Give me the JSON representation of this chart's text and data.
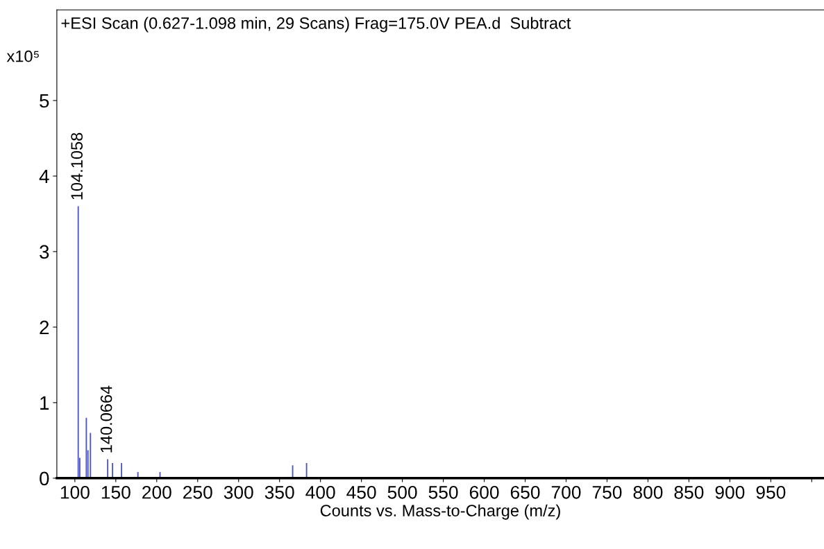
{
  "chart_data": {
    "type": "bar",
    "title": "+ESI Scan (0.627-1.098 min, 29 Scans) Frag=175.0V PEA.d  Subtract",
    "xlabel": "Counts vs. Mass-to-Charge (m/z)",
    "ylabel": "x10⁵",
    "x": [
      104.1058,
      106,
      114,
      116,
      119,
      140.0664,
      146,
      157,
      177,
      204,
      366,
      383
    ],
    "values": [
      3.6,
      0.27,
      0.8,
      0.37,
      0.6,
      0.25,
      0.2,
      0.2,
      0.08,
      0.08,
      0.17,
      0.2
    ],
    "color": "#5058c0",
    "annotations": [
      {
        "text": "104.1058",
        "x": 104.1058,
        "y": 3.6
      },
      {
        "text": "140.0664",
        "x": 140.0664,
        "y": 0.25
      }
    ],
    "xlim": [
      78,
      1015
    ],
    "ylim": [
      0,
      6.2
    ],
    "xticks": [
      100,
      150,
      200,
      250,
      300,
      350,
      400,
      450,
      500,
      550,
      600,
      650,
      700,
      750,
      800,
      850,
      900,
      950,
      {
        "value": 1000,
        "label": null
      }
    ],
    "yticks": [
      0,
      1,
      2,
      3,
      4,
      5
    ],
    "grid": false,
    "legend": false
  }
}
